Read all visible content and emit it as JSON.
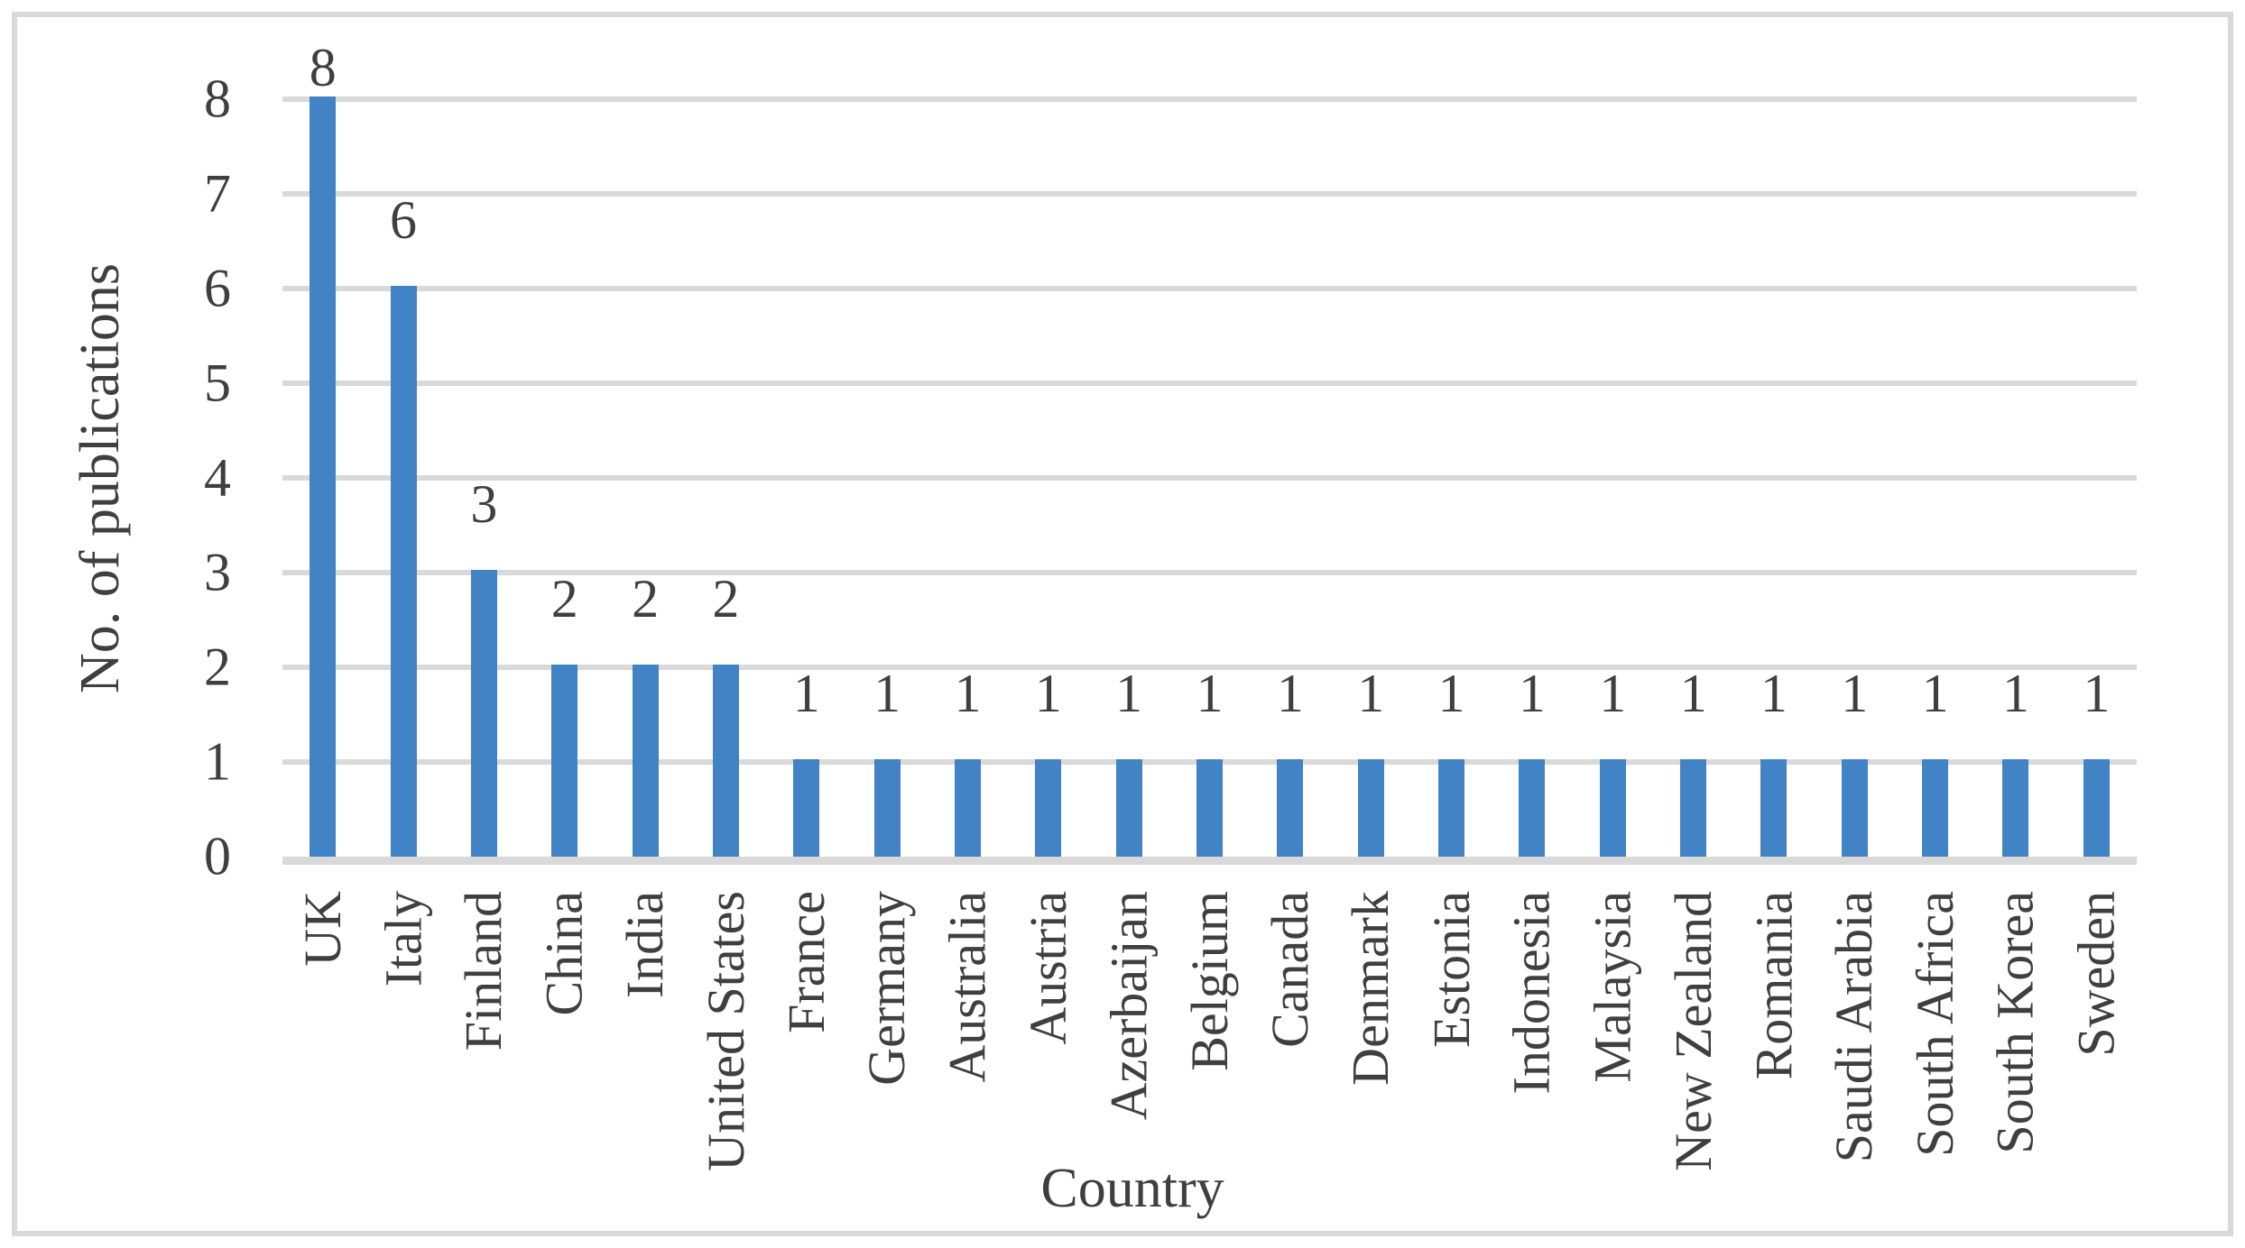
{
  "figure": {
    "background": "#FFFFFF",
    "border_color": "#D9D9D9"
  },
  "chart_data": {
    "type": "bar",
    "title": "",
    "xlabel": "Country",
    "ylabel": "No. of publications",
    "categories": [
      "UK",
      "Italy",
      "Finland",
      "China",
      "India",
      "United States",
      "France",
      "Germany",
      "Australia",
      "Austria",
      "Azerbaijan",
      "Belgium",
      "Canada",
      "Denmark",
      "Estonia",
      "Indonesia",
      "Malaysia",
      "New Zealand",
      "Romania",
      "Saudi Arabia",
      "South Africa",
      "South Korea",
      "Sweden"
    ],
    "values": [
      8,
      6,
      3,
      2,
      2,
      2,
      1,
      1,
      1,
      1,
      1,
      1,
      1,
      1,
      1,
      1,
      1,
      1,
      1,
      1,
      1,
      1,
      1
    ],
    "data_labels": [
      8,
      6,
      3,
      2,
      2,
      2,
      1,
      1,
      1,
      1,
      1,
      1,
      1,
      1,
      1,
      1,
      1,
      1,
      1,
      1,
      1,
      1,
      1
    ],
    "ylim": [
      0,
      8
    ],
    "yticks": [
      0,
      1,
      2,
      3,
      4,
      5,
      6,
      7,
      8
    ],
    "grid": true,
    "legend": false,
    "bar_color": "#4183C4",
    "gridline_color": "#D9D9D9",
    "axis_text_color": "#3F3F3F"
  }
}
